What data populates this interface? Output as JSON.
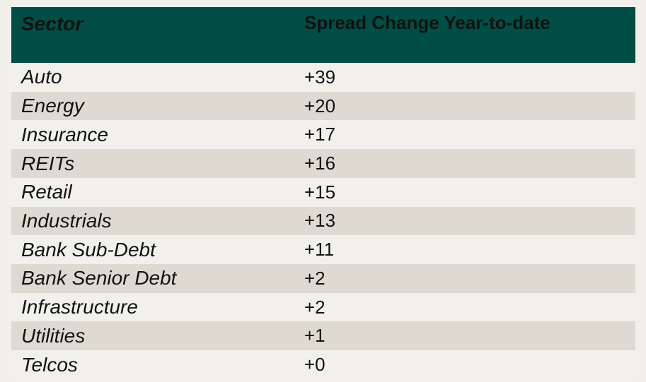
{
  "table": {
    "columns": [
      {
        "label": "Sector"
      },
      {
        "label": "Spread Change Year-to-date"
      }
    ],
    "rows": [
      {
        "sector": "Auto",
        "value": "+39"
      },
      {
        "sector": "Energy",
        "value": "+20"
      },
      {
        "sector": "Insurance",
        "value": "+17"
      },
      {
        "sector": "REITs",
        "value": "+16"
      },
      {
        "sector": "Retail",
        "value": "+15"
      },
      {
        "sector": "Industrials",
        "value": "+13"
      },
      {
        "sector": "Bank Sub-Debt",
        "value": "+11"
      },
      {
        "sector": "Bank Senior Debt",
        "value": "+2"
      },
      {
        "sector": "Infrastructure",
        "value": "+2"
      },
      {
        "sector": "Utilities",
        "value": "+1"
      },
      {
        "sector": "Telcos",
        "value": "+0"
      }
    ],
    "colors": {
      "header_bg": "#024d46",
      "header_text": "#ffffff",
      "stripe_bg": "#dedad2",
      "row_bg": "#f1f0eb",
      "page_bg": "#f0efea",
      "body_text": "#121212"
    }
  },
  "chart_data": {
    "type": "table",
    "title": "",
    "columns": [
      "Sector",
      "Spread Change Year-to-date"
    ],
    "rows": [
      [
        "Auto",
        39
      ],
      [
        "Energy",
        20
      ],
      [
        "Insurance",
        17
      ],
      [
        "REITs",
        16
      ],
      [
        "Retail",
        15
      ],
      [
        "Industrials",
        13
      ],
      [
        "Bank Sub-Debt",
        11
      ],
      [
        "Bank Senior Debt",
        2
      ],
      [
        "Infrastructure",
        2
      ],
      [
        "Utilities",
        1
      ],
      [
        "Telcos",
        0
      ]
    ],
    "notes": "Values shown with explicit plus sign prefix; rows sorted descending by spread change"
  }
}
